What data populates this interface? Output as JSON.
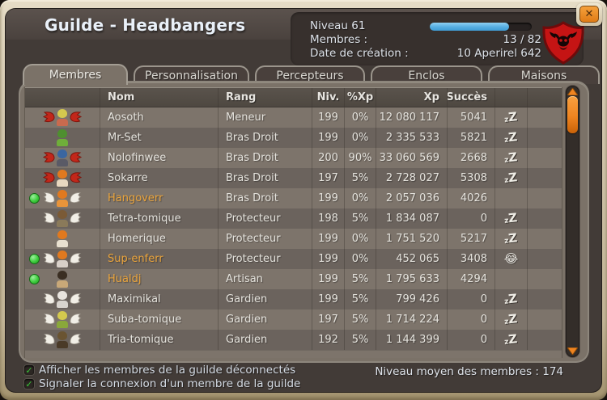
{
  "window": {
    "title": "Guilde - Headbangers",
    "close_label": "✕"
  },
  "info": {
    "level_label": "Niveau 61",
    "members_label": "Membres :",
    "members_value": "13 / 82",
    "creation_label": "Date de création :",
    "creation_value": "10 Aperirel 642",
    "level_progress_pct": 78
  },
  "colors": {
    "online_green": "#3ecc3e",
    "online_name_orange": "#eaa43c",
    "progress_blue": "#55aee2",
    "scrollbar_orange": "#ef8420",
    "emblem_red": "#c51414"
  },
  "tabs": [
    {
      "label": "Membres",
      "active": true
    },
    {
      "label": "Personnalisation",
      "active": false
    },
    {
      "label": "Percepteurs",
      "active": false
    },
    {
      "label": "Enclos",
      "active": false
    },
    {
      "label": "Maisons",
      "active": false
    }
  ],
  "table": {
    "headers": [
      "",
      "Nom",
      "Rang",
      "Niv.",
      "%Xp",
      "Xp",
      "Succès",
      "",
      ""
    ],
    "rows": [
      {
        "name": "Aosoth",
        "rank": "Meneur",
        "level": "199",
        "xp_pct": "0%",
        "xp": "12 080 117",
        "success": "5041",
        "status": "sleep",
        "online": false,
        "wings": "demon",
        "c1": "#d4c94e",
        "c2": "#c96a4e"
      },
      {
        "name": "Mr-Set",
        "rank": "Bras Droit",
        "level": "199",
        "xp_pct": "0%",
        "xp": "2 335 533",
        "success": "5821",
        "status": "sleep",
        "online": false,
        "wings": "none",
        "c1": "#4e8f2f",
        "c2": "#6fae3a"
      },
      {
        "name": "Nolofinwee",
        "rank": "Bras Droit",
        "level": "200",
        "xp_pct": "90%",
        "xp": "33 060 569",
        "success": "2668",
        "status": "sleep",
        "online": false,
        "wings": "demon",
        "c1": "#3b66a0",
        "c2": "#5a5a66"
      },
      {
        "name": "Sokarre",
        "rank": "Bras Droit",
        "level": "197",
        "xp_pct": "5%",
        "xp": "2 728 027",
        "success": "5308",
        "status": "sleep",
        "online": false,
        "wings": "demon",
        "c1": "#e0791f",
        "c2": "#e8d8c0"
      },
      {
        "name": "Hangoverr",
        "rank": "Bras Droit",
        "level": "199",
        "xp_pct": "0%",
        "xp": "2 057 036",
        "success": "4026",
        "status": "none",
        "online": true,
        "wings": "angel",
        "c1": "#e0791f",
        "c2": "#e8943a"
      },
      {
        "name": "Tetra-tomique",
        "rank": "Protecteur",
        "level": "198",
        "xp_pct": "5%",
        "xp": "1 834 087",
        "success": "0",
        "status": "sleep",
        "online": false,
        "wings": "angel",
        "c1": "#7a5a36",
        "c2": "#8a7a5a"
      },
      {
        "name": "Homerique",
        "rank": "Protecteur",
        "level": "199",
        "xp_pct": "0%",
        "xp": "1 751 520",
        "success": "5217",
        "status": "sleep",
        "online": false,
        "wings": "none",
        "c1": "#e0791f",
        "c2": "#e8e0d0"
      },
      {
        "name": "Sup-enferr",
        "rank": "Protecteur",
        "level": "199",
        "xp_pct": "0%",
        "xp": "452 065",
        "success": "3408",
        "status": "laugh",
        "online": true,
        "wings": "angel",
        "c1": "#e0791f",
        "c2": "#d8d0c8"
      },
      {
        "name": "Hualdj",
        "rank": "Artisan",
        "level": "199",
        "xp_pct": "5%",
        "xp": "1 795 633",
        "success": "4294",
        "status": "none",
        "online": true,
        "wings": "none",
        "c1": "#3a2e22",
        "c2": "#c8a878"
      },
      {
        "name": "Maximikal",
        "rank": "Gardien",
        "level": "199",
        "xp_pct": "5%",
        "xp": "799 426",
        "success": "0",
        "status": "sleep",
        "online": false,
        "wings": "angel",
        "c1": "#e8e4de",
        "c2": "#d8d4ce"
      },
      {
        "name": "Suba-tomique",
        "rank": "Gardien",
        "level": "197",
        "xp_pct": "5%",
        "xp": "1 714 224",
        "success": "0",
        "status": "sleep",
        "online": false,
        "wings": "angel",
        "c1": "#d4c94e",
        "c2": "#8aa83a"
      },
      {
        "name": "Tria-tomique",
        "rank": "Gardien",
        "level": "192",
        "xp_pct": "5%",
        "xp": "1 144 399",
        "success": "0",
        "status": "sleep",
        "online": false,
        "wings": "angel",
        "c1": "#6a5432",
        "c2": "#4a3a28"
      }
    ]
  },
  "footer": {
    "checkbox_show_offline": "Afficher les membres de la guilde déconnectés",
    "checkbox_signal_connection": "Signaler la connexion d'un membre de la guilde",
    "check_glyph": "✓",
    "average_label": "Niveau moyen des membres : 174"
  }
}
